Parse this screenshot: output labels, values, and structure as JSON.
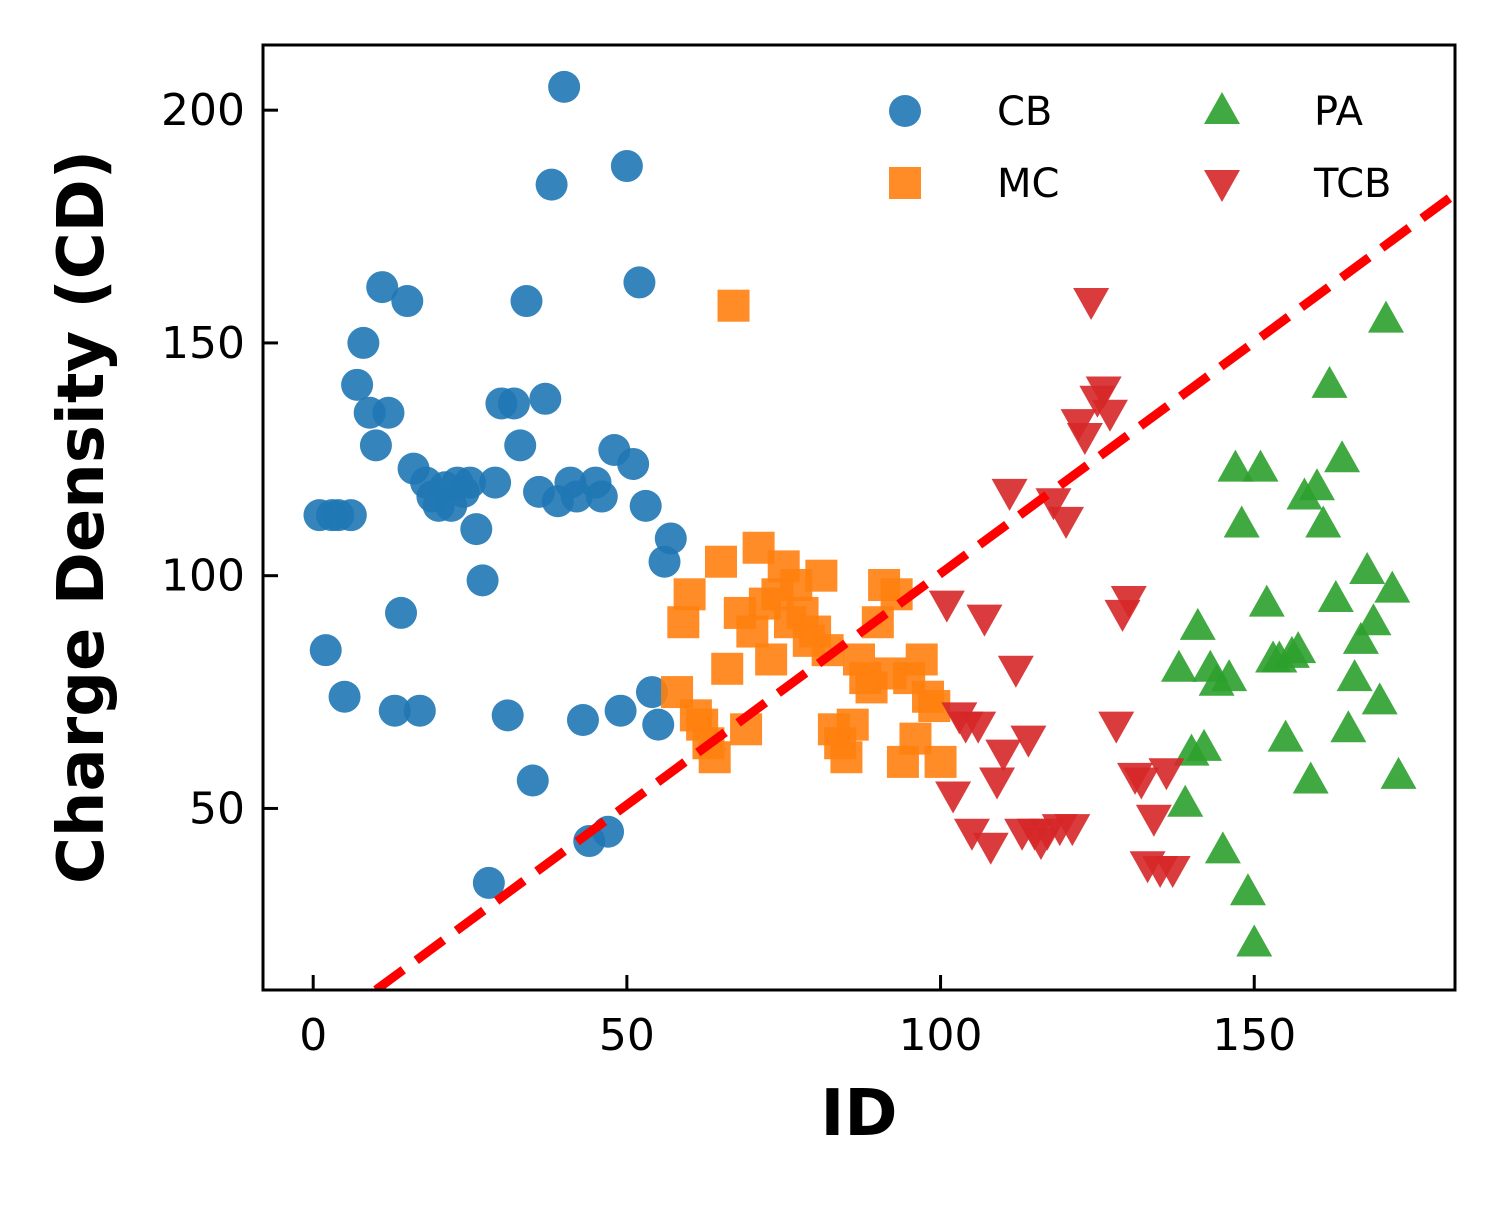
{
  "chart_data": {
    "type": "scatter",
    "xlabel": "ID",
    "ylabel": "Charge Density (CD)",
    "xlim": [
      -8,
      182
    ],
    "ylim": [
      11,
      214
    ],
    "xticks": [
      0,
      50,
      100,
      150
    ],
    "yticks": [
      50,
      100,
      150,
      200
    ],
    "grid": false,
    "legend": {
      "position": "top-right",
      "columns": 2
    },
    "series": [
      {
        "name": "CB",
        "marker": "circle",
        "color": "#1f77b4",
        "points": [
          [
            1,
            113
          ],
          [
            3,
            113
          ],
          [
            4,
            113
          ],
          [
            6,
            113
          ],
          [
            2,
            84
          ],
          [
            5,
            74
          ],
          [
            7,
            141
          ],
          [
            8,
            150
          ],
          [
            9,
            135
          ],
          [
            10,
            128
          ],
          [
            11,
            162
          ],
          [
            12,
            135
          ],
          [
            13,
            71
          ],
          [
            14,
            92
          ],
          [
            15,
            159
          ],
          [
            16,
            123
          ],
          [
            17,
            71
          ],
          [
            18,
            120
          ],
          [
            19,
            117
          ],
          [
            20,
            115
          ],
          [
            21,
            119
          ],
          [
            22,
            115
          ],
          [
            23,
            120
          ],
          [
            24,
            118
          ],
          [
            25,
            120
          ],
          [
            26,
            110
          ],
          [
            27,
            99
          ],
          [
            28,
            34
          ],
          [
            29,
            120
          ],
          [
            30,
            137
          ],
          [
            31,
            70
          ],
          [
            32,
            137
          ],
          [
            33,
            128
          ],
          [
            34,
            159
          ],
          [
            35,
            56
          ],
          [
            36,
            118
          ],
          [
            37,
            138
          ],
          [
            38,
            184
          ],
          [
            39,
            116
          ],
          [
            40,
            205
          ],
          [
            41,
            120
          ],
          [
            42,
            117
          ],
          [
            43,
            69
          ],
          [
            44,
            43
          ],
          [
            45,
            120
          ],
          [
            46,
            117
          ],
          [
            47,
            45
          ],
          [
            48,
            127
          ],
          [
            49,
            71
          ],
          [
            50,
            188
          ],
          [
            51,
            124
          ],
          [
            52,
            163
          ],
          [
            53,
            115
          ],
          [
            54,
            75
          ],
          [
            55,
            68
          ],
          [
            56,
            103
          ],
          [
            57,
            108
          ]
        ]
      },
      {
        "name": "MC",
        "marker": "square",
        "color": "#ff7f0e",
        "points": [
          [
            58,
            75
          ],
          [
            59,
            90
          ],
          [
            60,
            96
          ],
          [
            61,
            70
          ],
          [
            62,
            68
          ],
          [
            63,
            64
          ],
          [
            64,
            61
          ],
          [
            65,
            103
          ],
          [
            66,
            80
          ],
          [
            67,
            158
          ],
          [
            68,
            92
          ],
          [
            69,
            67
          ],
          [
            70,
            88
          ],
          [
            71,
            106
          ],
          [
            72,
            94
          ],
          [
            73,
            82
          ],
          [
            74,
            96
          ],
          [
            75,
            102
          ],
          [
            76,
            90
          ],
          [
            77,
            98
          ],
          [
            78,
            92
          ],
          [
            79,
            86
          ],
          [
            80,
            88
          ],
          [
            81,
            100
          ],
          [
            82,
            84
          ],
          [
            83,
            67
          ],
          [
            84,
            64
          ],
          [
            85,
            61
          ],
          [
            86,
            68
          ],
          [
            87,
            82
          ],
          [
            88,
            78
          ],
          [
            89,
            76
          ],
          [
            90,
            90
          ],
          [
            91,
            98
          ],
          [
            92,
            79
          ],
          [
            93,
            96
          ],
          [
            94,
            60
          ],
          [
            95,
            78
          ],
          [
            96,
            65
          ],
          [
            97,
            82
          ],
          [
            98,
            74
          ],
          [
            99,
            72
          ],
          [
            100,
            60
          ]
        ]
      },
      {
        "name": "PA",
        "marker": "triangle-up",
        "color": "#2ca02c",
        "points": [
          [
            138,
            80
          ],
          [
            139,
            51
          ],
          [
            140,
            62
          ],
          [
            141,
            89
          ],
          [
            142,
            63
          ],
          [
            143,
            80
          ],
          [
            144,
            77
          ],
          [
            145,
            41
          ],
          [
            146,
            78
          ],
          [
            147,
            123
          ],
          [
            148,
            111
          ],
          [
            149,
            32
          ],
          [
            150,
            21
          ],
          [
            151,
            123
          ],
          [
            152,
            94
          ],
          [
            153,
            82
          ],
          [
            154,
            82
          ],
          [
            155,
            65
          ],
          [
            156,
            83
          ],
          [
            157,
            84
          ],
          [
            158,
            117
          ],
          [
            159,
            56
          ],
          [
            160,
            119
          ],
          [
            161,
            111
          ],
          [
            162,
            141
          ],
          [
            163,
            95
          ],
          [
            164,
            125
          ],
          [
            165,
            67
          ],
          [
            166,
            78
          ],
          [
            167,
            86
          ],
          [
            168,
            101
          ],
          [
            169,
            90
          ],
          [
            170,
            73
          ],
          [
            171,
            155
          ],
          [
            172,
            97
          ],
          [
            173,
            57
          ]
        ]
      },
      {
        "name": "TCB",
        "marker": "triangle-down",
        "color": "#d62728",
        "points": [
          [
            101,
            94
          ],
          [
            102,
            53
          ],
          [
            103,
            70
          ],
          [
            104,
            68
          ],
          [
            105,
            45
          ],
          [
            106,
            68
          ],
          [
            107,
            91
          ],
          [
            108,
            42
          ],
          [
            109,
            56
          ],
          [
            110,
            62
          ],
          [
            111,
            118
          ],
          [
            112,
            80
          ],
          [
            113,
            45
          ],
          [
            114,
            65
          ],
          [
            115,
            45
          ],
          [
            116,
            43
          ],
          [
            117,
            45
          ],
          [
            118,
            116
          ],
          [
            119,
            46
          ],
          [
            120,
            112
          ],
          [
            121,
            46
          ],
          [
            122,
            133
          ],
          [
            123,
            130
          ],
          [
            124,
            159
          ],
          [
            125,
            138
          ],
          [
            126,
            140
          ],
          [
            127,
            135
          ],
          [
            128,
            68
          ],
          [
            129,
            92
          ],
          [
            130,
            95
          ],
          [
            131,
            57
          ],
          [
            132,
            56
          ],
          [
            133,
            38
          ],
          [
            134,
            48
          ],
          [
            135,
            37
          ],
          [
            136,
            58
          ],
          [
            137,
            37
          ]
        ]
      }
    ],
    "trendline": {
      "style": "dashed",
      "color": "#ff0000",
      "x": [
        10,
        182
      ],
      "y": [
        11,
        182
      ]
    }
  }
}
